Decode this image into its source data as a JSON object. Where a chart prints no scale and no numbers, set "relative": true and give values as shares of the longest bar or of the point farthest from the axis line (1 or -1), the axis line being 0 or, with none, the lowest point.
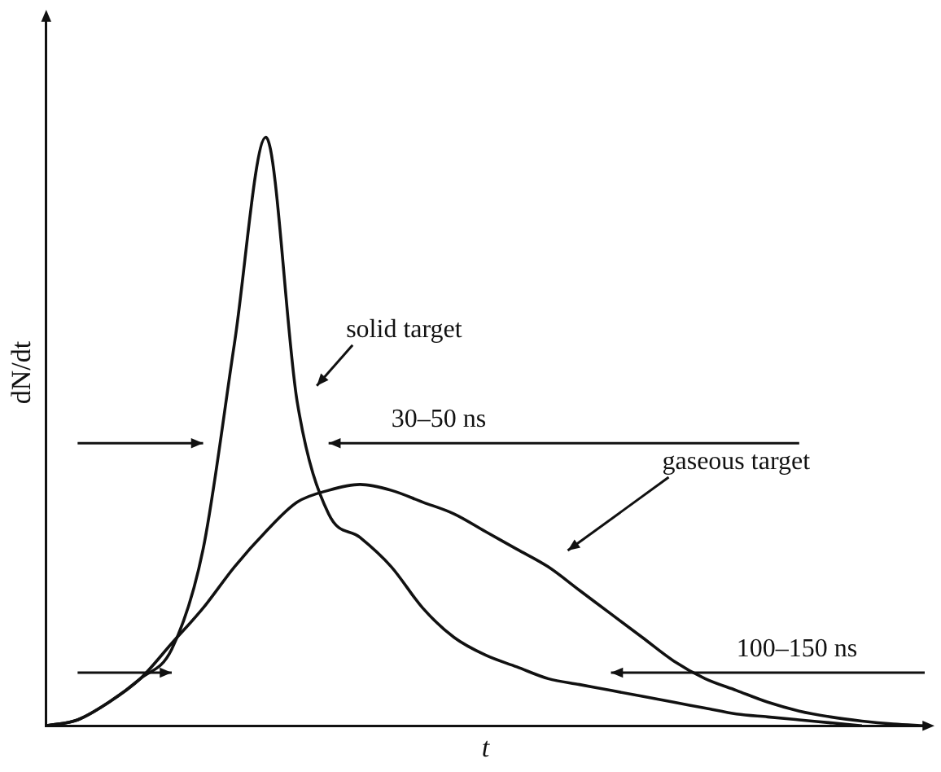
{
  "chart_data": {
    "type": "line",
    "relative": true,
    "xlabel": "t",
    "ylabel": "dN/dt",
    "marker": "none",
    "line_style": "solid",
    "grid": false,
    "legend": false,
    "tick_labels": false,
    "categories": [
      null,
      null,
      null,
      null,
      null,
      null,
      null,
      null,
      null,
      null,
      null,
      null,
      null,
      null,
      null,
      null,
      null,
      null,
      null,
      null,
      null,
      null,
      null,
      null,
      null,
      null,
      null,
      null,
      null
    ],
    "series": [
      {
        "name": "solid target",
        "color": "#111111",
        "values": [
          0,
          0.01,
          0.04,
          0.08,
          0.13,
          0.3,
          0.65,
          1,
          0.55,
          0.36,
          0.32,
          0.27,
          0.2,
          0.15,
          0.12,
          0.1,
          0.08,
          0.07,
          0.06,
          0.05,
          0.04,
          0.03,
          0.02,
          0.015,
          0.01,
          0.005,
          0,
          null,
          null
        ]
      },
      {
        "name": "gaseous target",
        "color": "#111111",
        "values": [
          0,
          0.01,
          0.04,
          0.08,
          0.14,
          0.2,
          0.27,
          0.33,
          0.38,
          0.4,
          0.41,
          0.4,
          0.38,
          0.36,
          0.33,
          0.3,
          0.27,
          0.23,
          0.19,
          0.15,
          0.11,
          0.08,
          0.06,
          0.04,
          0.025,
          0.015,
          0.008,
          0.003,
          0
        ]
      }
    ],
    "annotations": [
      "30–50 ns",
      "100–150 ns"
    ]
  }
}
